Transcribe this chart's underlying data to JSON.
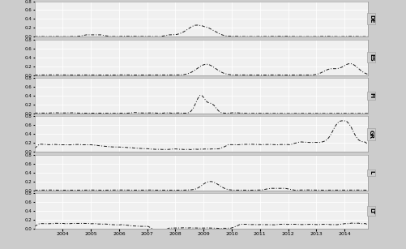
{
  "panels": [
    "DE",
    "ES",
    "FI",
    "GR",
    "L",
    "LT"
  ],
  "ylim": [
    0.0,
    0.8
  ],
  "yticks": [
    0.0,
    0.2,
    0.4,
    0.6,
    0.8
  ],
  "xlim": [
    2003.0,
    2014.83
  ],
  "xticks": [
    2004,
    2005,
    2006,
    2007,
    2008,
    2009,
    2010,
    2011,
    2012,
    2013,
    2014
  ],
  "xticklabels": [
    "2004",
    "2005",
    "2006",
    "2007",
    "2008",
    "2009",
    "2010",
    "2011",
    "2012",
    "2013",
    "2014"
  ],
  "line_color": "#1a1a1a",
  "line_style": "-.",
  "line_width": 0.7,
  "bg_color": "#f0f0f0",
  "panel_label_bg": "#cccccc",
  "grid_color": "#ffffff",
  "grid_linewidth": 0.6,
  "fig_bg": "#cccccc"
}
